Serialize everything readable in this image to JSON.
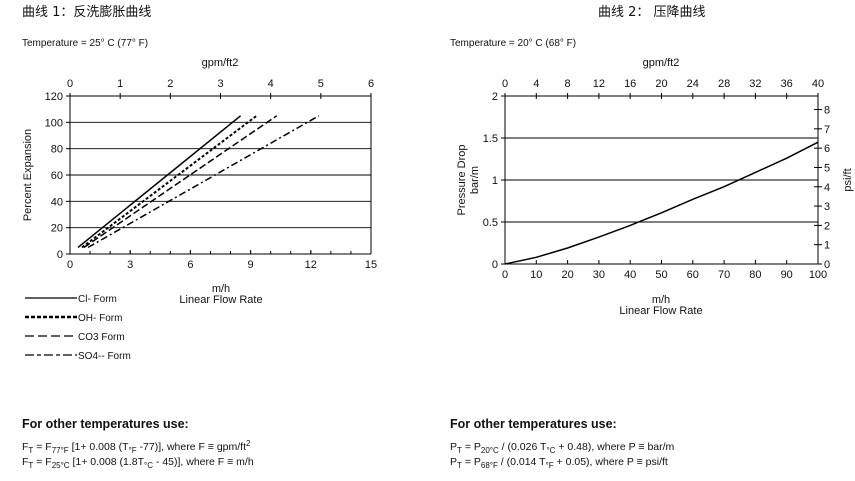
{
  "headers": [
    "曲线 1：反洗膨胀曲线",
    "曲线 2： 压降曲线"
  ],
  "chart_data": [
    {
      "type": "line",
      "note": "Temperature = 25° C (77° F)",
      "xlabel": "m/h",
      "xlabel2": "Linear Flow Rate",
      "x2label": "gpm/ft2",
      "ylabel": "Percent Expansion",
      "xlim": [
        0,
        15
      ],
      "x2lim": [
        0,
        6
      ],
      "ylim": [
        0,
        120
      ],
      "xticks": [
        0,
        3,
        6,
        9,
        12,
        15
      ],
      "x2ticks": [
        0,
        1,
        2,
        3,
        4,
        5,
        6
      ],
      "yticks": [
        0,
        20,
        40,
        60,
        80,
        100,
        120
      ],
      "grid": "horizontal",
      "legend": "bottom-left",
      "series": [
        {
          "name": "Cl- Form",
          "style": "solid",
          "points": [
            [
              0.4,
              5
            ],
            [
              8.5,
              105
            ]
          ]
        },
        {
          "name": "OH- Form",
          "style": "dotted",
          "points": [
            [
              0.6,
              5
            ],
            [
              9.3,
              105
            ]
          ]
        },
        {
          "name": "CO3 Form",
          "style": "dashed",
          "points": [
            [
              0.7,
              5
            ],
            [
              10.3,
              105
            ]
          ]
        },
        {
          "name": "SO4-- Form",
          "style": "dashdot",
          "points": [
            [
              0.9,
              5
            ],
            [
              12.4,
              105
            ]
          ]
        }
      ]
    },
    {
      "type": "line",
      "note": "Temperature = 20° C (68° F)",
      "xlabel": "m/h",
      "xlabel2": "Linear Flow Rate",
      "x2label": "gpm/ft2",
      "ylabel": "Pressure Drop",
      "ylabel2": "bar/m",
      "y2label": "psi/ft",
      "xlim": [
        0,
        100
      ],
      "x2lim": [
        0,
        40
      ],
      "ylim": [
        0,
        2
      ],
      "y2lim": [
        0,
        8.7
      ],
      "xticks": [
        0,
        10,
        20,
        30,
        40,
        50,
        60,
        70,
        80,
        90,
        100
      ],
      "x2ticks": [
        0,
        4,
        8,
        12,
        16,
        20,
        24,
        28,
        32,
        36,
        40
      ],
      "yticks": [
        0,
        0.5,
        1,
        1.5,
        2
      ],
      "y2ticks": [
        0,
        1,
        2,
        3,
        4,
        5,
        6,
        7,
        8
      ],
      "grid": "horizontal",
      "series": [
        {
          "points": [
            [
              0,
              0
            ],
            [
              10,
              0.08
            ],
            [
              20,
              0.19
            ],
            [
              30,
              0.32
            ],
            [
              40,
              0.46
            ],
            [
              50,
              0.61
            ],
            [
              60,
              0.77
            ],
            [
              70,
              0.92
            ],
            [
              80,
              1.09
            ],
            [
              90,
              1.26
            ],
            [
              100,
              1.45
            ]
          ]
        }
      ]
    }
  ],
  "formulas": {
    "heading": "For other temperatures use:",
    "left": [
      {
        "a": "F",
        "as": "T",
        "b": " = F",
        "bs": "77°F",
        "c": " [1+ 0.008 (T",
        "cs": "°F",
        "d": " -77)], where F ≡ gpm/ft",
        "sup": "2"
      },
      {
        "a": "F",
        "as": "T",
        "b": " = F",
        "bs": "25°C",
        "c": " [1+ 0.008 (1.8T",
        "cs": "°C",
        "d": " - 45)], where F ≡ m/h",
        "sup": ""
      }
    ],
    "right": [
      {
        "a": "P",
        "as": "T",
        "b": " = P",
        "bs": "20°C",
        "c": " / (0.026 T",
        "cs": "°C",
        "d": " + 0.48), where P ≡ bar/m",
        "sup": ""
      },
      {
        "a": "P",
        "as": "T",
        "b": " = P",
        "bs": "68°F",
        "c": " / (0.014 T",
        "cs": "°F",
        "d": " + 0.05), where P ≡ psi/ft",
        "sup": ""
      }
    ]
  }
}
